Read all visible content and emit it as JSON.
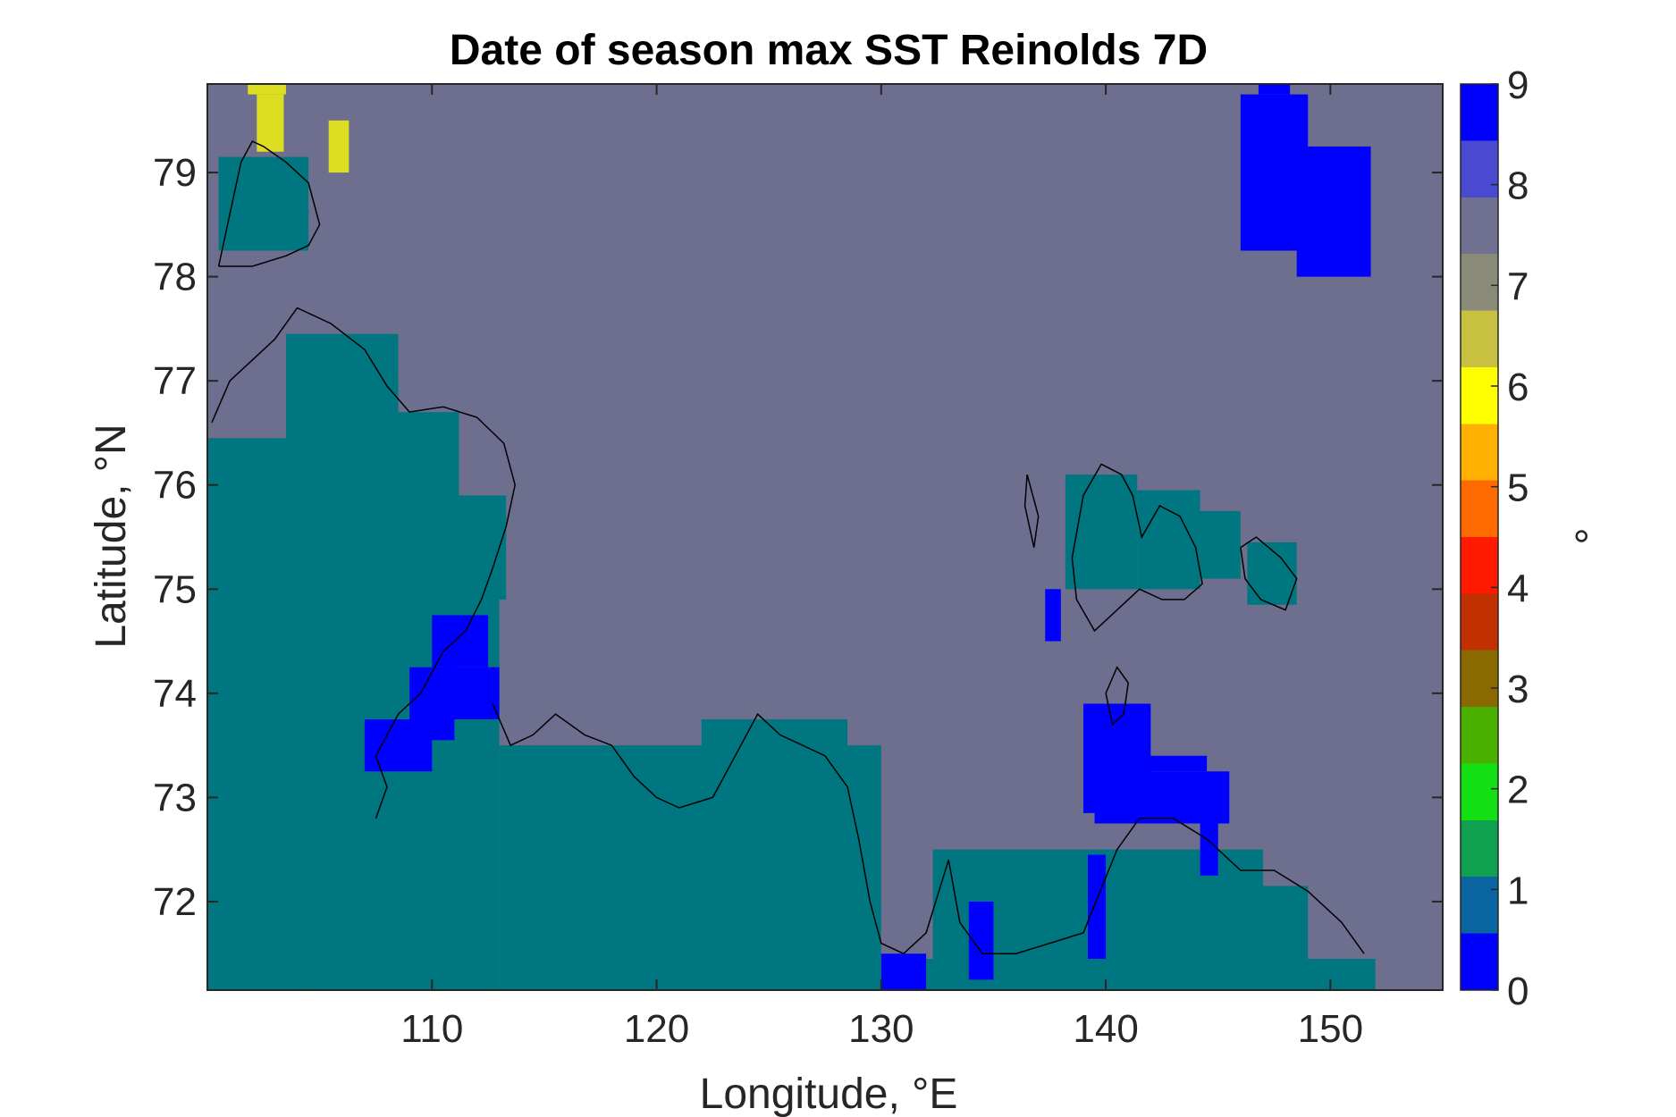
{
  "chart_data": {
    "type": "heatmap",
    "title": "Date of season max SST Reinolds 7D",
    "xlabel": "Longitude, °E",
    "ylabel": "Latitude, °N",
    "xlim": [
      100,
      155
    ],
    "ylim": [
      71.15,
      79.85
    ],
    "x_ticks": [
      110,
      120,
      130,
      140,
      150
    ],
    "y_ticks": [
      72,
      73,
      74,
      75,
      76,
      77,
      78,
      79
    ],
    "colorbar": {
      "label": "°",
      "range": [
        0,
        9
      ],
      "ticks": [
        0,
        1,
        2,
        3,
        4,
        5,
        6,
        7,
        8,
        9
      ],
      "colormap": "jet-like",
      "colors": [
        "#0000ff",
        "#0a64a0",
        "#0fa050",
        "#12e012",
        "#4ab000",
        "#8a6a00",
        "#c03000",
        "#ff1a00",
        "#ff6a00",
        "#ffb000",
        "#ffff00",
        "#c8c040",
        "#8a8a78",
        "#707090",
        "#4a4ad0",
        "#0000ff"
      ]
    },
    "background_value": 8.2,
    "land_value": 0.9,
    "colors": {
      "background": "#6e6e8e",
      "land": "#007780",
      "blue": "#0000ff",
      "yellow": "#dddd22",
      "coast": "#000000"
    },
    "regions": [
      {
        "value": 0.9,
        "desc": "land",
        "boxes": [
          [
            100,
            104.5,
            71.15,
            76.45
          ],
          [
            104.5,
            113,
            71.15,
            75.1
          ],
          [
            103.5,
            108.5,
            75.1,
            77.45
          ],
          [
            108.5,
            111.2,
            75.1,
            76.7
          ],
          [
            111.2,
            113.3,
            74.9,
            75.9
          ],
          [
            113,
            130,
            71.15,
            73.5
          ],
          [
            122,
            128.5,
            73.1,
            73.75
          ],
          [
            130,
            152,
            71.15,
            71.45
          ],
          [
            132.3,
            147,
            71.45,
            72.5
          ],
          [
            144,
            149,
            71.45,
            72.15
          ],
          [
            138.2,
            141.4,
            75,
            76.1
          ],
          [
            141.4,
            144.2,
            75,
            75.95
          ],
          [
            143.5,
            146,
            75.1,
            75.75
          ],
          [
            146.3,
            148.5,
            74.85,
            75.45
          ],
          [
            100.5,
            104.5,
            78.25,
            79.15
          ]
        ]
      },
      {
        "value": 0.0,
        "desc": "blue patches",
        "boxes": [
          [
            107,
            110,
            73.25,
            73.75
          ],
          [
            109,
            111,
            73.55,
            74.25
          ],
          [
            110,
            112.5,
            74.25,
            74.75
          ],
          [
            110.5,
            113,
            73.75,
            74.25
          ],
          [
            139,
            142,
            72.85,
            73.9
          ],
          [
            139.5,
            145.5,
            72.75,
            73.25
          ],
          [
            140,
            144.5,
            73.25,
            73.4
          ],
          [
            144.2,
            145,
            72.25,
            72.75
          ],
          [
            139.2,
            140,
            71.45,
            72.45
          ],
          [
            133.9,
            135,
            71.25,
            72
          ],
          [
            130,
            132,
            71.15,
            71.5
          ],
          [
            137.3,
            138,
            74.5,
            75
          ],
          [
            146,
            149,
            78.25,
            79.75
          ],
          [
            146.8,
            148.2,
            79.75,
            79.85
          ],
          [
            148.5,
            151.8,
            78,
            79.25
          ]
        ]
      },
      {
        "value": 6.8,
        "desc": "yellow patches",
        "boxes": [
          [
            101.8,
            103.5,
            79.75,
            79.85
          ],
          [
            102.2,
            103.4,
            79.2,
            79.75
          ],
          [
            105.4,
            106.3,
            79.0,
            79.5
          ]
        ]
      }
    ]
  }
}
